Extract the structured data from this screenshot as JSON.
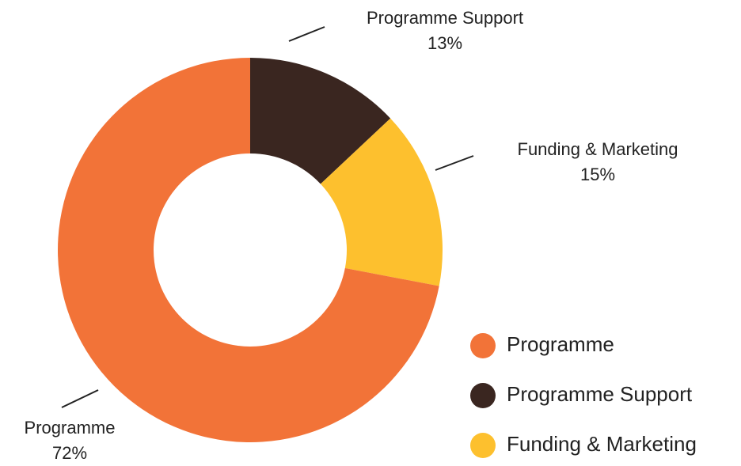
{
  "chart_data": {
    "type": "donut",
    "categories": [
      "Programme",
      "Programme Support",
      "Funding & Marketing"
    ],
    "values": [
      72,
      13,
      15
    ],
    "value_labels": [
      "72%",
      "13%",
      "15%"
    ],
    "colors": [
      "#f27338",
      "#3a2620",
      "#fdc02e"
    ],
    "legend": "bottom-right"
  }
}
